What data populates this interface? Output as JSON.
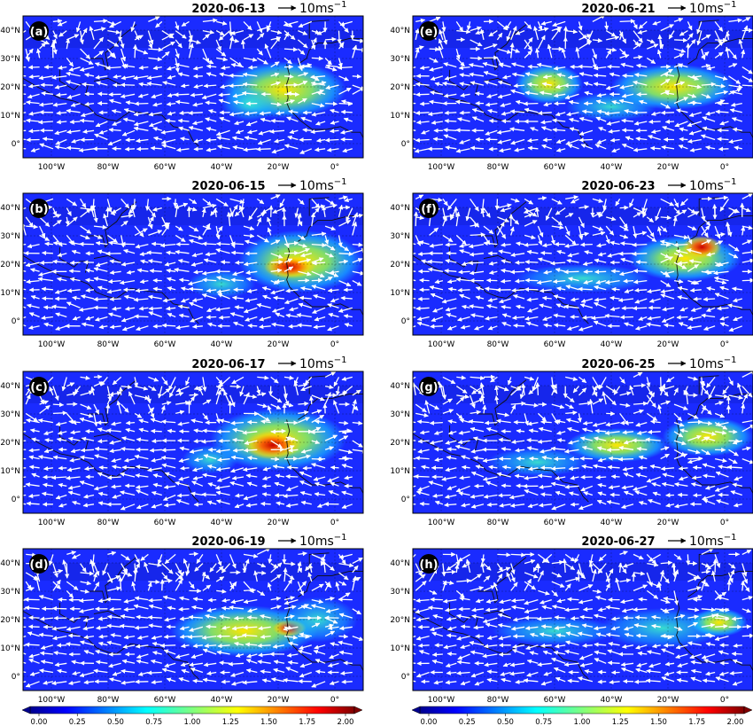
{
  "panels": [
    {
      "letter": "a",
      "date": "2020-06-13",
      "col": 0,
      "row": 0
    },
    {
      "letter": "b",
      "date": "2020-06-15",
      "col": 0,
      "row": 1
    },
    {
      "letter": "c",
      "date": "2020-06-17",
      "col": 0,
      "row": 2
    },
    {
      "letter": "d",
      "date": "2020-06-19",
      "col": 0,
      "row": 3
    },
    {
      "letter": "e",
      "date": "2020-06-21",
      "col": 1,
      "row": 0
    },
    {
      "letter": "f",
      "date": "2020-06-23",
      "col": 1,
      "row": 1
    },
    {
      "letter": "g",
      "date": "2020-06-25",
      "col": 1,
      "row": 2
    },
    {
      "letter": "h",
      "date": "2020-06-27",
      "col": 1,
      "row": 3
    }
  ],
  "lon_ticks": [
    "100°W",
    "80°W",
    "60°W",
    "40°W",
    "20°W",
    "0°"
  ],
  "lat_ticks": [
    "40°N",
    "30°N",
    "20°N",
    "10°N",
    "0°"
  ],
  "reference_vector": {
    "label_base": "10ms",
    "label_exp": "−1"
  },
  "colorbar": {
    "ticks": [
      "0.00",
      "0.25",
      "0.50",
      "0.75",
      "1.00",
      "1.25",
      "1.50",
      "1.75",
      "2.00"
    ],
    "range": [
      0,
      2
    ],
    "colormap": "jet",
    "extend": "both"
  },
  "colors": {
    "vector": "#ffffff",
    "coastline": "#111111",
    "low": "#1a2bff",
    "high": "#b00000"
  },
  "map_extent": {
    "lon": [
      -110,
      10
    ],
    "lat": [
      -5,
      45
    ]
  }
}
